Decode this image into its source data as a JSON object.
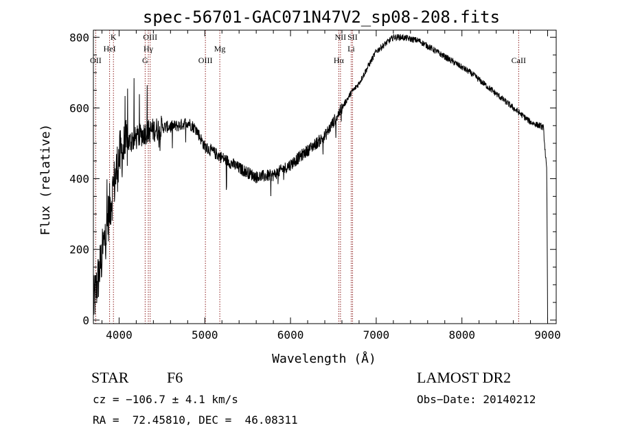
{
  "chart_data": {
    "type": "line",
    "title": "spec-56701-GAC071N47V2_sp08-208.fits",
    "xlabel": "Wavelength (Å)",
    "ylabel": "Flux (relative)",
    "xlim": [
      3700,
      9100
    ],
    "ylim": [
      -10,
      820
    ],
    "x_ticks": [
      4000,
      5000,
      6000,
      7000,
      8000,
      9000
    ],
    "y_ticks": [
      0,
      200,
      400,
      600,
      800
    ],
    "x_minor_step": 200,
    "y_minor_step": 50,
    "grid": false,
    "line_color": "#000000",
    "marker_color": "#8b1a1a",
    "spectrum_anchors": {
      "x": [
        3700,
        3800,
        3900,
        4000,
        4100,
        4300,
        4500,
        4700,
        4800,
        4900,
        5000,
        5200,
        5400,
        5600,
        5800,
        6000,
        6200,
        6400,
        6550,
        6700,
        6800,
        7000,
        7200,
        7300,
        7500,
        7700,
        7900,
        8100,
        8300,
        8500,
        8700,
        8800,
        8950,
        8990,
        9000
      ],
      "y": [
        40,
        180,
        330,
        460,
        500,
        530,
        545,
        550,
        560,
        540,
        490,
        460,
        430,
        405,
        410,
        440,
        480,
        520,
        580,
        640,
        670,
        760,
        800,
        800,
        790,
        760,
        730,
        700,
        660,
        620,
        580,
        560,
        545,
        420,
        0
      ]
    },
    "lines": [
      {
        "label": "OII",
        "x": 3727,
        "row": 3
      },
      {
        "label": "HeI",
        "x": 3889,
        "row": 2
      },
      {
        "label": "K",
        "x": 3934,
        "row": 1
      },
      {
        "label": "G",
        "x": 4304,
        "row": 3
      },
      {
        "label": "Hγ",
        "x": 4341,
        "row": 2
      },
      {
        "label": "OIII",
        "x": 4363,
        "row": 1
      },
      {
        "label": "OIII",
        "x": 5007,
        "row": 3
      },
      {
        "label": "Mg",
        "x": 5175,
        "row": 2
      },
      {
        "label": "Hα",
        "x": 6563,
        "row": 3
      },
      {
        "label": "NII",
        "x": 6583,
        "row": 1
      },
      {
        "label": "Li",
        "x": 6708,
        "row": 2
      },
      {
        "label": "SII",
        "x": 6724,
        "row": 1
      },
      {
        "label": "CaII",
        "x": 8662,
        "row": 3
      }
    ]
  },
  "info": {
    "class": "STAR",
    "subclass": "F6",
    "survey": "LAMOST DR2",
    "cz": "cz = −106.7 ± 4.1 km/s",
    "obs_date": "Obs−Date: 20140212",
    "coords": "RA =  72.45810, DEC =  46.08311"
  }
}
